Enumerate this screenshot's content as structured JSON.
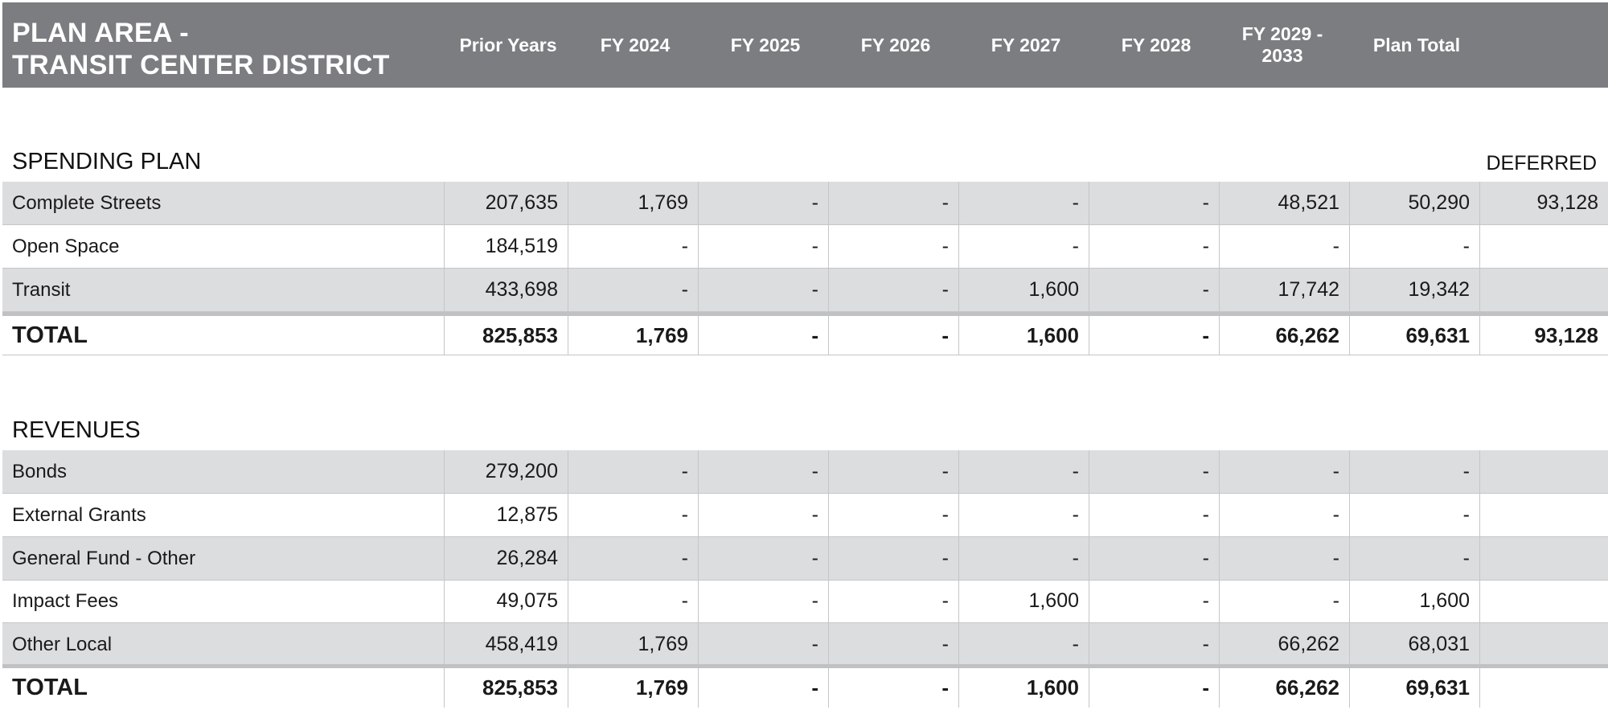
{
  "header": {
    "title_line1": "PLAN AREA -",
    "title_line2": "TRANSIT CENTER DISTRICT",
    "columns": [
      "Prior Years",
      "FY 2024",
      "FY 2025",
      "FY 2026",
      "FY 2027",
      "FY 2028",
      "FY 2029 - 2033",
      "Plan Total"
    ]
  },
  "spending": {
    "title": "SPENDING PLAN",
    "deferred_label": "DEFERRED",
    "rows": [
      {
        "label": "Complete Streets",
        "values": [
          "207,635",
          "1,769",
          "-",
          "-",
          "-",
          "-",
          "48,521",
          "50,290",
          "93,128"
        ]
      },
      {
        "label": "Open Space",
        "values": [
          "184,519",
          "-",
          "-",
          "-",
          "-",
          "-",
          "-",
          "-",
          ""
        ]
      },
      {
        "label": "Transit",
        "values": [
          "433,698",
          "-",
          "-",
          "-",
          "1,600",
          "-",
          "17,742",
          "19,342",
          ""
        ]
      }
    ],
    "total": {
      "label": "TOTAL",
      "values": [
        "825,853",
        "1,769",
        "-",
        "-",
        "1,600",
        "-",
        "66,262",
        "69,631",
        "93,128"
      ]
    }
  },
  "revenues": {
    "title": "REVENUES",
    "rows": [
      {
        "label": "Bonds",
        "values": [
          "279,200",
          "-",
          "-",
          "-",
          "-",
          "-",
          "-",
          "-",
          ""
        ]
      },
      {
        "label": "External Grants",
        "values": [
          "12,875",
          "-",
          "-",
          "-",
          "-",
          "-",
          "-",
          "-",
          ""
        ]
      },
      {
        "label": "General Fund - Other",
        "values": [
          "26,284",
          "-",
          "-",
          "-",
          "-",
          "-",
          "-",
          "-",
          ""
        ]
      },
      {
        "label": "Impact Fees",
        "values": [
          "49,075",
          "-",
          "-",
          "-",
          "1,600",
          "-",
          "-",
          "1,600",
          ""
        ]
      },
      {
        "label": "Other Local",
        "values": [
          "458,419",
          "1,769",
          "-",
          "-",
          "-",
          "-",
          "66,262",
          "68,031",
          ""
        ]
      }
    ],
    "total": {
      "label": "TOTAL",
      "values": [
        "825,853",
        "1,769",
        "-",
        "-",
        "1,600",
        "-",
        "66,262",
        "69,631",
        ""
      ]
    }
  }
}
